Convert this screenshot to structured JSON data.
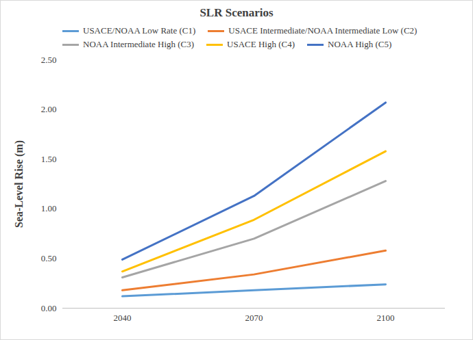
{
  "chart_data": {
    "type": "line",
    "title": "SLR Scenarios",
    "y_label": "Sea-Level Rise (m)",
    "categories": [
      "2040",
      "2070",
      "2100"
    ],
    "series": [
      {
        "name": "USACE/NOAA Low Rate (C1)",
        "color": "#5b9bd5",
        "values": [
          0.12,
          0.18,
          0.24
        ]
      },
      {
        "name": "USACE Intermediate/NOAA Intermediate Low (C2)",
        "color": "#ed7d31",
        "values": [
          0.18,
          0.34,
          0.58
        ]
      },
      {
        "name": "NOAA Intermediate High (C3)",
        "color": "#a5a5a5",
        "values": [
          0.31,
          0.7,
          1.28
        ]
      },
      {
        "name": "USACE High (C4)",
        "color": "#ffc000",
        "values": [
          0.37,
          0.89,
          1.58
        ]
      },
      {
        "name": "NOAA High (C5)",
        "color": "#4472c4",
        "values": [
          0.49,
          1.13,
          2.07
        ]
      }
    ],
    "ylim": [
      0,
      2.5
    ],
    "yticks": [
      {
        "value": 0,
        "label": "0.00"
      },
      {
        "value": 0.5,
        "label": "0.50"
      },
      {
        "value": 1,
        "label": "1.00"
      },
      {
        "value": 1.5,
        "label": "1.50"
      },
      {
        "value": 2,
        "label": "2.00"
      },
      {
        "value": 2.5,
        "label": "2.50"
      }
    ],
    "grid": false,
    "legend": "top-left"
  }
}
